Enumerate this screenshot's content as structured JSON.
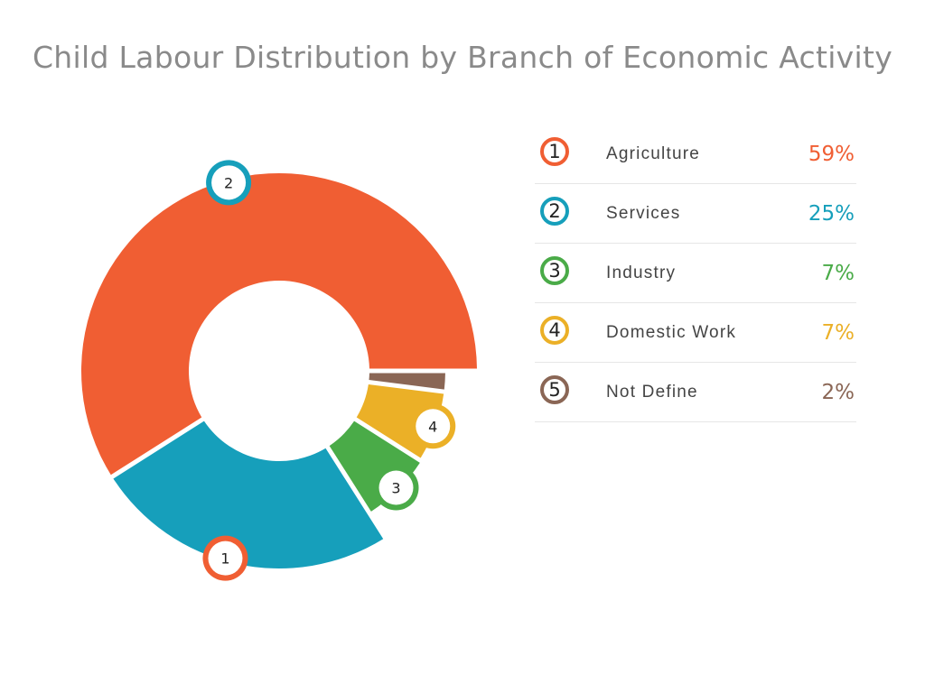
{
  "chart_data": {
    "type": "pie",
    "title": "Child Labour Distribution by Branch of Economic Activity",
    "slices": [
      {
        "number": "1",
        "label": "Agriculture",
        "value": 59,
        "value_label": "59%",
        "color": "#f05e33"
      },
      {
        "number": "2",
        "label": "Services",
        "value": 25,
        "value_label": "25%",
        "color": "#169fbb"
      },
      {
        "number": "3",
        "label": "Industry",
        "value": 7,
        "value_label": "7%",
        "color": "#4aab48"
      },
      {
        "number": "4",
        "label": "Domestic Work",
        "value": 7,
        "value_label": "7%",
        "color": "#ebb027"
      },
      {
        "number": "5",
        "label": "Not Define",
        "value": 2,
        "value_label": "2%",
        "color": "#8a6655"
      }
    ],
    "legend_position": "right",
    "donut": true
  }
}
